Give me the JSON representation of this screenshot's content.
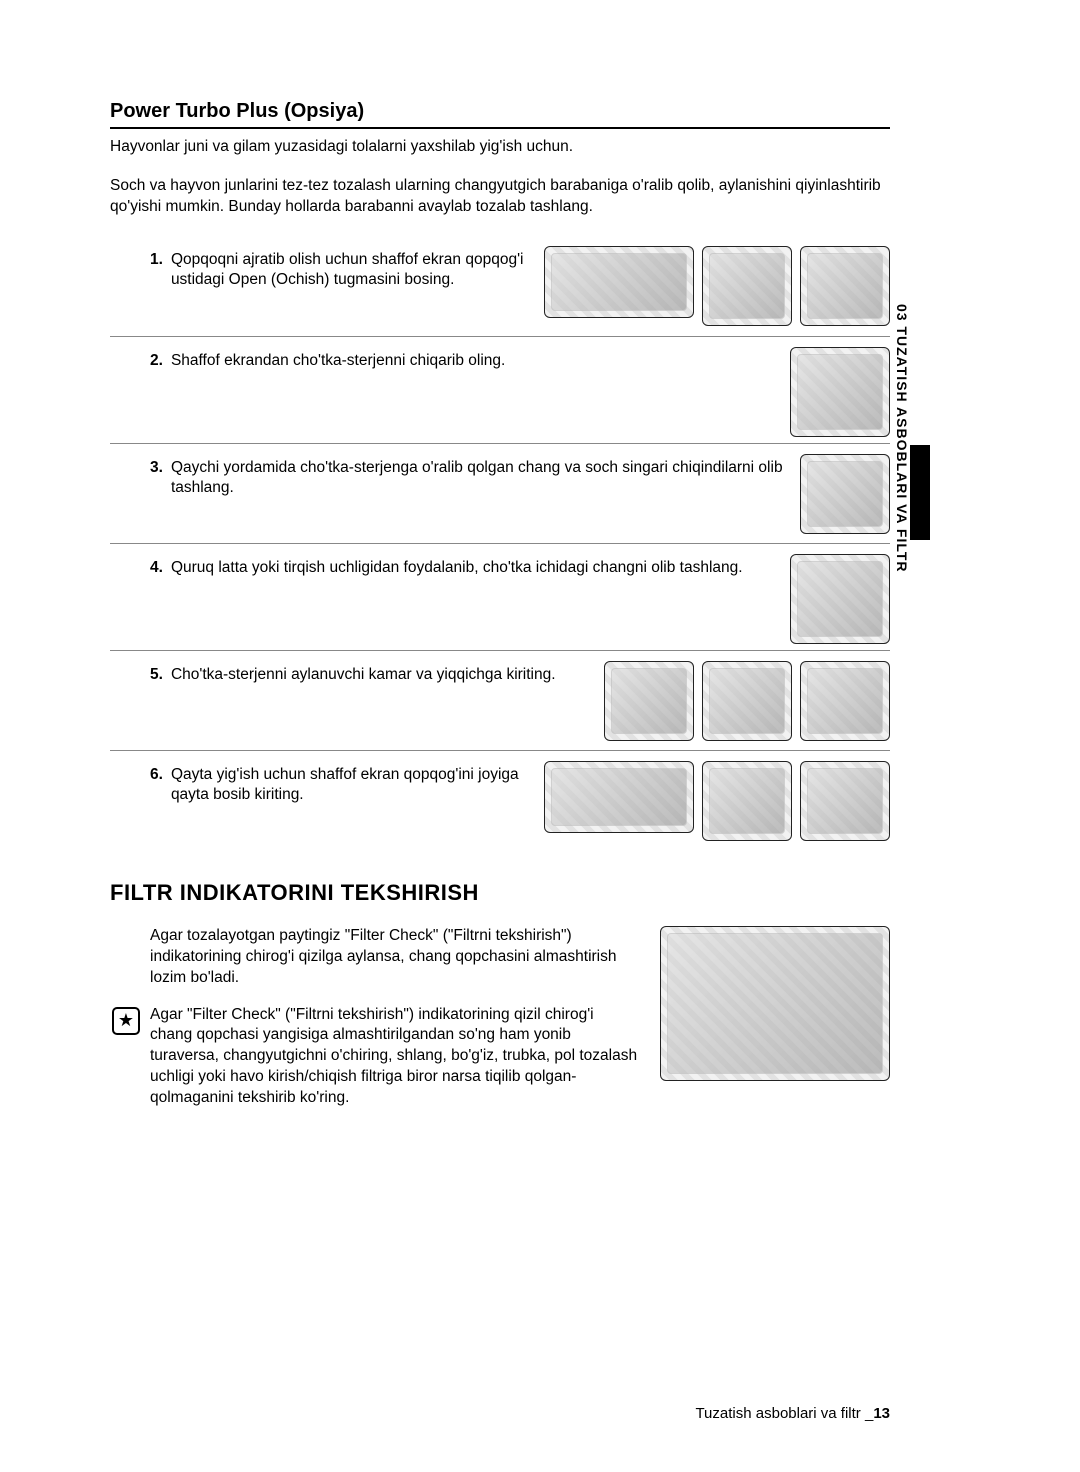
{
  "section_title": "Power Turbo Plus (Opsiya)",
  "intro_line1": "Hayvonlar juni va gilam yuzasidagi tolalarni yaxshilab yig'ish uchun.",
  "intro_line2": "Soch va hayvon junlarini tez-tez tozalash ularning changyutgich barabaniga o'ralib qolib, aylanishini qiyinlashtirib qo'yishi mumkin. Bunday hollarda barabanni avaylab tozalab tashlang.",
  "steps": [
    {
      "n": "1.",
      "t": "Qopqoqni ajratib olish uchun shaffof ekran qopqog'i ustidagi Open (Ochish) tugmasini bosing.",
      "imgs": [
        "w",
        "s",
        "s"
      ]
    },
    {
      "n": "2.",
      "t": "Shaffof ekrandan cho'tka-sterjenni chiqarib oling.",
      "imgs": [
        "m"
      ]
    },
    {
      "n": "3.",
      "t": "Qaychi yordamida cho'tka-sterjenga o'ralib qolgan chang va soch singari chiqindilarni olib tashlang.",
      "imgs": [
        "s"
      ]
    },
    {
      "n": "4.",
      "t": "Quruq latta yoki tirqish uchligidan foydalanib, cho'tka ichidagi changni olib tashlang.",
      "imgs": [
        "m"
      ]
    },
    {
      "n": "5.",
      "t": "Cho'tka-sterjenni aylanuvchi kamar va yiqqichga kiriting.",
      "imgs": [
        "s",
        "s",
        "s"
      ]
    },
    {
      "n": "6.",
      "t": "Qayta yig'ish uchun shaffof ekran qopqog'ini joyiga qayta bosib kiriting.",
      "imgs": [
        "w",
        "s",
        "s"
      ]
    }
  ],
  "h2": "FILTR INDIKATORINI TEKSHIRISH",
  "filter_p": "Agar tozalayotgan paytingiz \"Filter Check\" (\"Filtrni tekshirish\") indikatorining chirog'i qizilga aylansa, chang qopchasini almashtirish lozim bo'ladi.",
  "filter_note": "Agar \"Filter Check\" (\"Filtrni tekshirish\") indikatorining qizil chirog'i chang qopchasi yangisiga almashtirilgandan so'ng ham yonib turaversa, changyutgichni o'chiring, shlang, bo'g'iz, trubka, pol tozalash uchligi yoki havo kirish/chiqish filtriga biror narsa tiqilib qolgan-qolmaganini tekshirib ko'ring.",
  "side_tab": "03  TUZATISH ASBOBLARI VA FILTR",
  "footer_text": "Tuzatish asboblari va filtr _",
  "footer_page": "13"
}
